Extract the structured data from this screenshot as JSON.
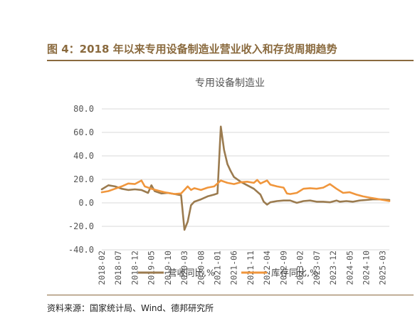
{
  "figure": {
    "title": "图 4：2018 年以来专用设备制造业营业收入和存货周期趋势",
    "source": "资料来源：国家统计局、Wind、德邦研究所"
  },
  "chart_data": {
    "type": "line",
    "title": "专用设备制造业",
    "xlabel": "",
    "ylabel": "",
    "ylim": [
      -40,
      80
    ],
    "yticks": [
      "80.0",
      "60.0",
      "40.0",
      "20.0",
      "0.0",
      "-20.0",
      "-40.0"
    ],
    "grid": true,
    "legend_position": "bottom",
    "x_tick_labels": [
      "2018-02",
      "2018-07",
      "2018-12",
      "2019-05",
      "2019-10",
      "2020-03",
      "2020-08",
      "2021-01",
      "2021-06",
      "2021-11",
      "2022-04",
      "2022-09",
      "2023-02",
      "2023-07",
      "2023-12",
      "2024-05",
      "2024-10",
      "2025-03"
    ],
    "x_start": "2018-02",
    "x_end": "2025-05",
    "series": [
      {
        "name": "营收同比,%",
        "color": "#9b7b4f",
        "points": [
          [
            "2018-02",
            11.5
          ],
          [
            "2018-04",
            15.0
          ],
          [
            "2018-06",
            14.0
          ],
          [
            "2018-08",
            12.0
          ],
          [
            "2018-10",
            11.0
          ],
          [
            "2018-12",
            11.5
          ],
          [
            "2019-02",
            11.0
          ],
          [
            "2019-04",
            8.5
          ],
          [
            "2019-05",
            15.0
          ],
          [
            "2019-06",
            10.0
          ],
          [
            "2019-08",
            8.0
          ],
          [
            "2019-10",
            8.5
          ],
          [
            "2019-12",
            7.5
          ],
          [
            "2020-02",
            6.5
          ],
          [
            "2020-03",
            -23.0
          ],
          [
            "2020-04",
            -16.0
          ],
          [
            "2020-05",
            -2.0
          ],
          [
            "2020-06",
            1.0
          ],
          [
            "2020-08",
            3.0
          ],
          [
            "2020-10",
            5.5
          ],
          [
            "2020-12",
            7.0
          ],
          [
            "2021-01",
            8.0
          ],
          [
            "2021-02",
            65.0
          ],
          [
            "2021-03",
            45.0
          ],
          [
            "2021-04",
            33.0
          ],
          [
            "2021-05",
            27.0
          ],
          [
            "2021-06",
            22.0
          ],
          [
            "2021-08",
            18.0
          ],
          [
            "2021-10",
            15.0
          ],
          [
            "2021-12",
            12.0
          ],
          [
            "2022-02",
            7.0
          ],
          [
            "2022-03",
            1.0
          ],
          [
            "2022-04",
            -1.5
          ],
          [
            "2022-05",
            0.5
          ],
          [
            "2022-07",
            1.5
          ],
          [
            "2022-09",
            2.0
          ],
          [
            "2022-11",
            2.0
          ],
          [
            "2023-01",
            0.0
          ],
          [
            "2023-03",
            1.5
          ],
          [
            "2023-05",
            2.0
          ],
          [
            "2023-07",
            1.0
          ],
          [
            "2023-09",
            1.0
          ],
          [
            "2023-11",
            0.5
          ],
          [
            "2024-01",
            2.0
          ],
          [
            "2024-02",
            1.0
          ],
          [
            "2024-04",
            1.5
          ],
          [
            "2024-06",
            1.0
          ],
          [
            "2024-08",
            2.0
          ],
          [
            "2024-10",
            2.5
          ],
          [
            "2024-12",
            3.0
          ],
          [
            "2025-02",
            3.0
          ],
          [
            "2025-05",
            2.5
          ]
        ]
      },
      {
        "name": "库存同比,%",
        "color": "#f0963c",
        "points": [
          [
            "2018-02",
            9.0
          ],
          [
            "2018-04",
            10.0
          ],
          [
            "2018-06",
            12.0
          ],
          [
            "2018-08",
            14.0
          ],
          [
            "2018-10",
            16.5
          ],
          [
            "2018-12",
            16.0
          ],
          [
            "2019-02",
            19.0
          ],
          [
            "2019-03",
            14.0
          ],
          [
            "2019-05",
            12.0
          ],
          [
            "2019-07",
            10.5
          ],
          [
            "2019-09",
            9.0
          ],
          [
            "2019-11",
            8.0
          ],
          [
            "2019-12",
            7.5
          ],
          [
            "2020-02",
            8.0
          ],
          [
            "2020-04",
            14.0
          ],
          [
            "2020-05",
            11.0
          ],
          [
            "2020-06",
            12.5
          ],
          [
            "2020-08",
            11.0
          ],
          [
            "2020-10",
            13.0
          ],
          [
            "2020-12",
            14.0
          ],
          [
            "2021-01",
            16.5
          ],
          [
            "2021-02",
            19.0
          ],
          [
            "2021-04",
            17.0
          ],
          [
            "2021-06",
            16.0
          ],
          [
            "2021-08",
            17.5
          ],
          [
            "2021-10",
            18.0
          ],
          [
            "2021-12",
            17.0
          ],
          [
            "2022-01",
            19.5
          ],
          [
            "2022-02",
            16.5
          ],
          [
            "2022-04",
            19.0
          ],
          [
            "2022-05",
            15.5
          ],
          [
            "2022-07",
            14.0
          ],
          [
            "2022-09",
            13.0
          ],
          [
            "2022-10",
            8.0
          ],
          [
            "2022-11",
            7.5
          ],
          [
            "2023-01",
            8.5
          ],
          [
            "2023-03",
            12.0
          ],
          [
            "2023-05",
            12.5
          ],
          [
            "2023-07",
            12.0
          ],
          [
            "2023-09",
            13.0
          ],
          [
            "2023-11",
            16.0
          ],
          [
            "2024-01",
            12.0
          ],
          [
            "2024-03",
            8.5
          ],
          [
            "2024-05",
            9.0
          ],
          [
            "2024-07",
            7.0
          ],
          [
            "2024-09",
            5.5
          ],
          [
            "2024-11",
            4.5
          ],
          [
            "2025-01",
            3.5
          ],
          [
            "2025-03",
            2.5
          ],
          [
            "2025-05",
            1.5
          ]
        ]
      }
    ]
  }
}
